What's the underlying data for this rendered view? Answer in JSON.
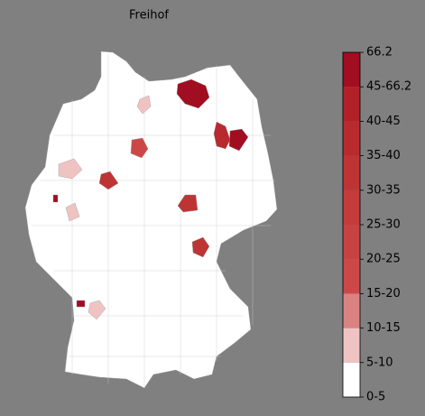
{
  "title": "Freihof",
  "colorbar": {
    "labels": [
      "0-5",
      "5-10",
      "10-15",
      "15-20",
      "20-25",
      "25-30",
      "30-35",
      "35-40",
      "40-45",
      "45-66.2",
      "66.2"
    ],
    "colors": [
      "#ffffff",
      "#f0c3c3",
      "#da8282",
      "#cc4848",
      "#c74242",
      "#c33b3b",
      "#be3434",
      "#b82a2e",
      "#b22128",
      "#a10d21"
    ]
  }
}
